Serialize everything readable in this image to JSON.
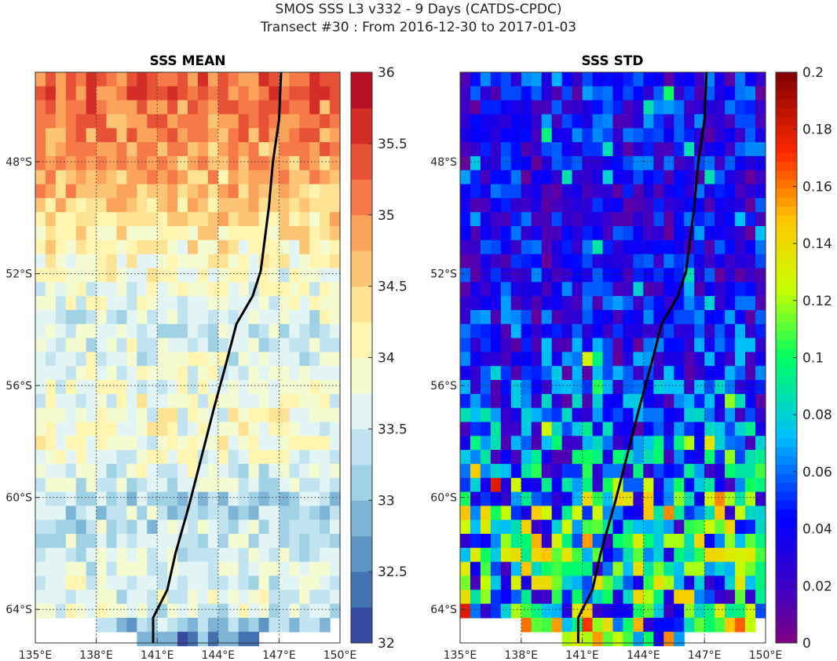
{
  "figure": {
    "title_line1": "SMOS SSS L3 v332 - 9 Days (CATDS-CPDC)",
    "title_line2": "Transect #30 : From 2016-12-30 to 2017-01-03"
  },
  "colors": {
    "transect_line": "#000000",
    "no_data": "#ffffff"
  },
  "chart_data": [
    {
      "type": "heatmap",
      "title": "SSS MEAN",
      "colormap": "RdYlBu_r",
      "x_ticks": [
        {
          "value": 135,
          "label": "135°E"
        },
        {
          "value": 138,
          "label": "138°E"
        },
        {
          "value": 141,
          "label": "141°E"
        },
        {
          "value": 144,
          "label": "144°E"
        },
        {
          "value": 147,
          "label": "147°E"
        },
        {
          "value": 150,
          "label": "150°E"
        }
      ],
      "y_ticks": [
        {
          "value": -48,
          "label": "48°S"
        },
        {
          "value": -52,
          "label": "52°S"
        },
        {
          "value": -56,
          "label": "56°S"
        },
        {
          "value": -60,
          "label": "60°S"
        },
        {
          "value": -64,
          "label": "64°S"
        }
      ],
      "xlim": [
        135,
        150
      ],
      "ylim": [
        -65.2,
        -44.8
      ],
      "grid": true,
      "colorbar": {
        "range": [
          32,
          36
        ],
        "levels": 16,
        "ticks": [
          {
            "value": 32,
            "label": "32"
          },
          {
            "value": 32.5,
            "label": "32.5"
          },
          {
            "value": 33,
            "label": "33"
          },
          {
            "value": 33.5,
            "label": "33.5"
          },
          {
            "value": 34,
            "label": "34"
          },
          {
            "value": 34.5,
            "label": "34.5"
          },
          {
            "value": 35,
            "label": "35"
          },
          {
            "value": 35.5,
            "label": "35.5"
          },
          {
            "value": 36,
            "label": "36"
          }
        ]
      },
      "field_profile": {
        "lat": [
          -44.8,
          -48,
          -50,
          -52,
          -54,
          -56,
          -58,
          -60,
          -62,
          -64,
          -65.2
        ],
        "value": [
          35.3,
          34.8,
          34.4,
          33.9,
          33.5,
          33.8,
          33.9,
          33.3,
          33.5,
          33.7,
          32.4
        ]
      },
      "transect": {
        "lon": [
          147.1,
          147.0,
          146.7,
          146.5,
          146.1,
          145.7,
          144.9,
          144.4,
          143.8,
          143.2,
          142.6,
          141.9,
          141.5,
          140.8,
          140.8
        ],
        "lat": [
          -44.8,
          -46.5,
          -48.0,
          -49.6,
          -51.9,
          -52.8,
          -53.8,
          -55.2,
          -56.8,
          -58.5,
          -60.2,
          -62.0,
          -63.3,
          -64.3,
          -65.2
        ]
      }
    },
    {
      "type": "heatmap",
      "title": "SSS STD",
      "colormap": "jet",
      "x_ticks": [
        {
          "value": 135,
          "label": "135°E"
        },
        {
          "value": 138,
          "label": "138°E"
        },
        {
          "value": 141,
          "label": "141°E"
        },
        {
          "value": 144,
          "label": "144°E"
        },
        {
          "value": 147,
          "label": "147°E"
        },
        {
          "value": 150,
          "label": "150°E"
        }
      ],
      "y_ticks": [
        {
          "value": -48,
          "label": "48°S"
        },
        {
          "value": -52,
          "label": "52°S"
        },
        {
          "value": -56,
          "label": "56°S"
        },
        {
          "value": -60,
          "label": "60°S"
        },
        {
          "value": -64,
          "label": "64°S"
        }
      ],
      "xlim": [
        135,
        150
      ],
      "ylim": [
        -65.2,
        -44.8
      ],
      "grid": true,
      "colorbar": {
        "range": [
          0,
          0.2
        ],
        "levels": 64,
        "ticks": [
          {
            "value": 0,
            "label": "0"
          },
          {
            "value": 0.02,
            "label": "0.02"
          },
          {
            "value": 0.04,
            "label": "0.04"
          },
          {
            "value": 0.06,
            "label": "0.06"
          },
          {
            "value": 0.08,
            "label": "0.08"
          },
          {
            "value": 0.1,
            "label": "0.1"
          },
          {
            "value": 0.12,
            "label": "0.12"
          },
          {
            "value": 0.14,
            "label": "0.14"
          },
          {
            "value": 0.16,
            "label": "0.16"
          },
          {
            "value": 0.18,
            "label": "0.18"
          },
          {
            "value": 0.2,
            "label": "0.2"
          }
        ]
      },
      "field_profile": {
        "lat": [
          -44.8,
          -48,
          -52,
          -56,
          -59,
          -60,
          -62,
          -64,
          -65.2
        ],
        "value": [
          0.04,
          0.035,
          0.035,
          0.045,
          0.06,
          0.09,
          0.085,
          0.08,
          0.11
        ]
      },
      "transect": {
        "lon": [
          147.1,
          147.0,
          146.7,
          146.5,
          146.1,
          145.7,
          144.9,
          144.4,
          143.8,
          143.2,
          142.6,
          141.9,
          141.5,
          140.8,
          140.8
        ],
        "lat": [
          -44.8,
          -46.5,
          -48.0,
          -49.6,
          -51.9,
          -52.8,
          -53.8,
          -55.2,
          -56.8,
          -58.5,
          -60.2,
          -62.0,
          -63.3,
          -64.3,
          -65.2
        ]
      }
    }
  ]
}
